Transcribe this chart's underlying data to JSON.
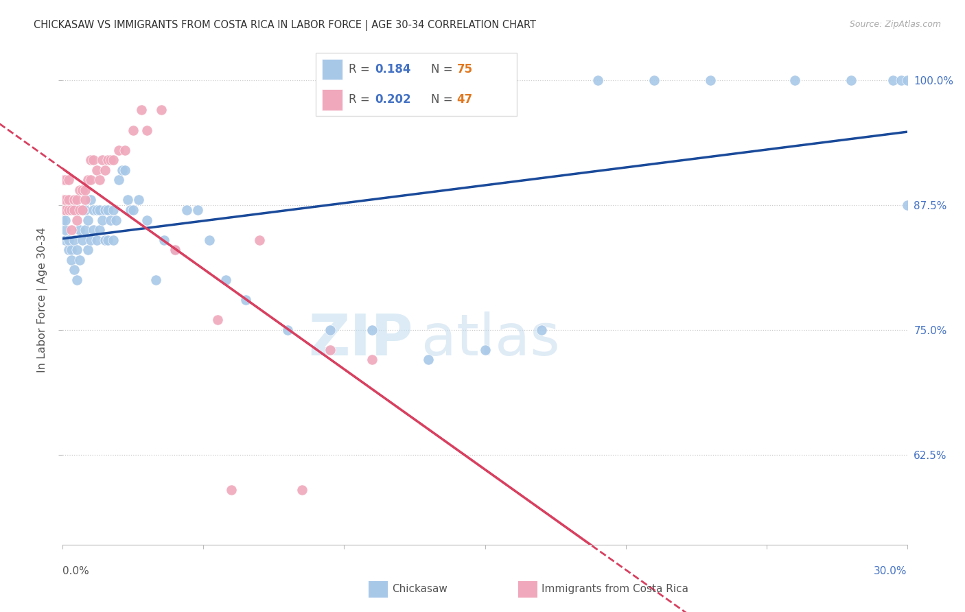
{
  "title": "CHICKASAW VS IMMIGRANTS FROM COSTA RICA IN LABOR FORCE | AGE 30-34 CORRELATION CHART",
  "source": "Source: ZipAtlas.com",
  "ylabel": "In Labor Force | Age 30-34",
  "right_yticklabels": [
    "62.5%",
    "75.0%",
    "87.5%",
    "100.0%"
  ],
  "right_ytick_vals": [
    0.625,
    0.75,
    0.875,
    1.0
  ],
  "xlim": [
    0.0,
    0.3
  ],
  "ylim": [
    0.535,
    1.025
  ],
  "blue_color": "#a8c8e8",
  "blue_line_color": "#1a4a9a",
  "pink_color": "#f0a8bc",
  "pink_line_color": "#d84060",
  "legend_blue_r": "0.184",
  "legend_blue_n": "75",
  "legend_pink_r": "0.202",
  "legend_pink_n": "47",
  "watermark_zip": "ZIP",
  "watermark_atlas": "atlas",
  "blue_x": [
    0.0,
    0.0,
    0.0,
    0.0,
    0.001,
    0.001,
    0.001,
    0.001,
    0.002,
    0.002,
    0.002,
    0.003,
    0.003,
    0.004,
    0.004,
    0.004,
    0.005,
    0.005,
    0.005,
    0.006,
    0.006,
    0.007,
    0.007,
    0.008,
    0.008,
    0.009,
    0.009,
    0.01,
    0.01,
    0.011,
    0.011,
    0.012,
    0.012,
    0.013,
    0.013,
    0.014,
    0.015,
    0.015,
    0.016,
    0.016,
    0.017,
    0.018,
    0.018,
    0.019,
    0.02,
    0.021,
    0.022,
    0.023,
    0.024,
    0.025,
    0.027,
    0.03,
    0.033,
    0.036,
    0.04,
    0.044,
    0.048,
    0.052,
    0.058,
    0.065,
    0.08,
    0.095,
    0.11,
    0.13,
    0.15,
    0.17,
    0.19,
    0.21,
    0.23,
    0.26,
    0.28,
    0.295,
    0.298,
    0.3,
    0.3
  ],
  "blue_y": [
    0.87,
    0.88,
    0.88,
    0.86,
    0.84,
    0.85,
    0.86,
    0.87,
    0.83,
    0.84,
    0.87,
    0.83,
    0.82,
    0.81,
    0.84,
    0.87,
    0.8,
    0.83,
    0.87,
    0.82,
    0.85,
    0.84,
    0.87,
    0.85,
    0.87,
    0.83,
    0.86,
    0.84,
    0.88,
    0.85,
    0.87,
    0.84,
    0.87,
    0.85,
    0.87,
    0.86,
    0.84,
    0.87,
    0.84,
    0.87,
    0.86,
    0.84,
    0.87,
    0.86,
    0.9,
    0.91,
    0.91,
    0.88,
    0.87,
    0.87,
    0.88,
    0.86,
    0.8,
    0.84,
    0.83,
    0.87,
    0.87,
    0.84,
    0.8,
    0.78,
    0.75,
    0.75,
    0.75,
    0.72,
    0.73,
    0.75,
    1.0,
    1.0,
    1.0,
    1.0,
    1.0,
    1.0,
    1.0,
    1.0,
    0.875
  ],
  "pink_x": [
    0.0,
    0.0,
    0.0,
    0.0,
    0.001,
    0.001,
    0.001,
    0.001,
    0.002,
    0.002,
    0.002,
    0.003,
    0.003,
    0.004,
    0.004,
    0.005,
    0.005,
    0.006,
    0.006,
    0.007,
    0.007,
    0.008,
    0.008,
    0.009,
    0.01,
    0.01,
    0.011,
    0.012,
    0.013,
    0.014,
    0.015,
    0.016,
    0.017,
    0.018,
    0.02,
    0.022,
    0.025,
    0.028,
    0.03,
    0.035,
    0.04,
    0.055,
    0.06,
    0.07,
    0.085,
    0.095,
    0.11
  ],
  "pink_y": [
    0.88,
    0.88,
    0.9,
    0.9,
    0.87,
    0.87,
    0.88,
    0.9,
    0.87,
    0.88,
    0.9,
    0.85,
    0.87,
    0.87,
    0.88,
    0.86,
    0.88,
    0.87,
    0.89,
    0.87,
    0.89,
    0.88,
    0.89,
    0.9,
    0.9,
    0.92,
    0.92,
    0.91,
    0.9,
    0.92,
    0.91,
    0.92,
    0.92,
    0.92,
    0.93,
    0.93,
    0.95,
    0.97,
    0.95,
    0.97,
    0.83,
    0.76,
    0.59,
    0.84,
    0.59,
    0.73,
    0.72
  ]
}
